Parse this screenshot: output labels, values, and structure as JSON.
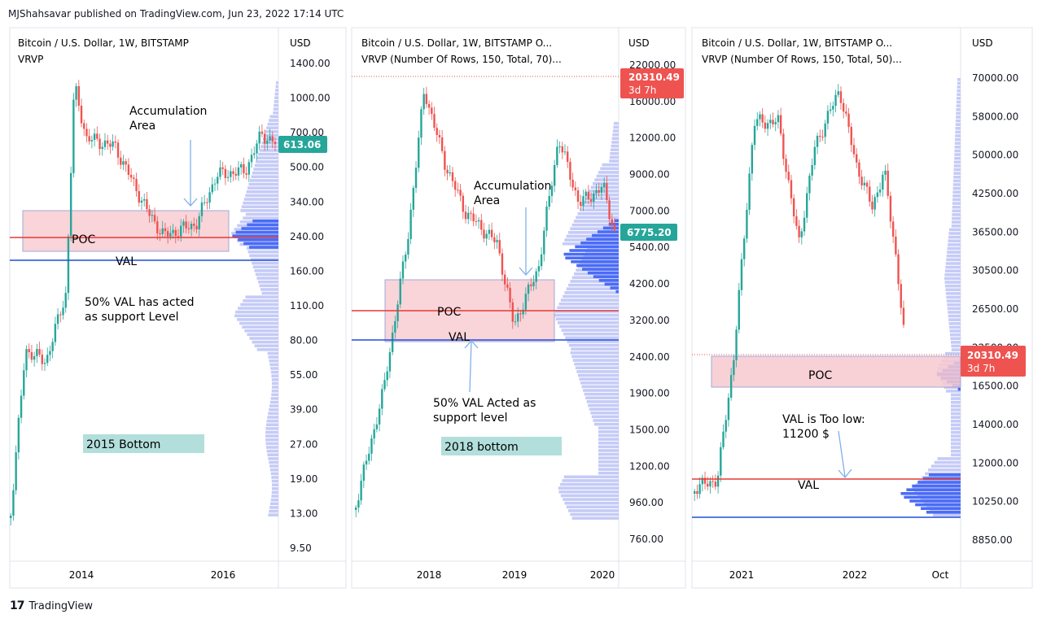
{
  "header": {
    "published": "MJShahsavar published on TradingView.com, Jun 23, 2022 17:14 UTC"
  },
  "brand": {
    "logo": "17",
    "name": "TradingView"
  },
  "colors": {
    "up": "#26a69a",
    "down": "#ef5350",
    "poc": "#e53935",
    "val": "#1e4fd8",
    "box_fill": "#f7c9cf",
    "box_stroke": "#9fa8da",
    "profile": "#c5cbf7",
    "profile_dark": "#4a6cf7",
    "price_tag_red": "#ef5350",
    "price_tag_green": "#26a69a"
  },
  "chart_data": [
    {
      "type": "candlestick",
      "title": "Bitcoin / U.S. Dollar, 1W, BITSTAMP",
      "subtitle": "VRVP",
      "currency": "USD",
      "y_scale": "log",
      "y_ticks": [
        "1400.00",
        "1000.00",
        "700.00",
        "500.00",
        "340.00",
        "240.00",
        "160.00",
        "110.00",
        "80.00",
        "55.00",
        "39.00",
        "27.00",
        "19.00",
        "13.00",
        "9.50"
      ],
      "x_ticks": [
        "2014",
        "2016"
      ],
      "last_price": "613.06",
      "series": [
        {
          "x": [
            "2013-05",
            "2013-09",
            "2013-11",
            "2014-01",
            "2014-05",
            "2014-08",
            "2015-01",
            "2015-06",
            "2015-09",
            "2015-12",
            "2016-04",
            "2016-06"
          ],
          "close": [
            120,
            130,
            1100,
            800,
            450,
            500,
            230,
            220,
            240,
            430,
            420,
            613
          ]
        }
      ],
      "annotations": [
        {
          "label": "Accumulation\nArea"
        },
        {
          "label": "POC",
          "value": 240
        },
        {
          "label": "VAL",
          "value": 185
        },
        {
          "label": "50% VAL has acted\nas support Level"
        },
        {
          "label": "2015 Bottom"
        }
      ]
    },
    {
      "type": "candlestick",
      "title": "Bitcoin / U.S. Dollar, 1W, BITSTAMP  O...",
      "subtitle": "VRVP (Number Of Rows, 150, Total, 70)...",
      "currency": "USD",
      "y_scale": "log",
      "y_ticks": [
        "22000.00",
        "16000.00",
        "12000.00",
        "9000.00",
        "7000.00",
        "5400.00",
        "4200.00",
        "3200.00",
        "2400.00",
        "1900.00",
        "1500.00",
        "1200.00",
        "960.00",
        "760.00"
      ],
      "x_ticks": [
        "2018",
        "2019",
        "2020"
      ],
      "last_price": "6775.20",
      "price_tag": {
        "price": "20310.49",
        "timer": "3d 7h"
      },
      "series": [
        {
          "x": [
            "2017-05",
            "2017-09",
            "2017-12",
            "2018-03",
            "2018-06",
            "2018-11",
            "2019-01",
            "2019-06",
            "2019-10",
            "2020-01",
            "2020-03"
          ],
          "close": [
            1400,
            4300,
            19000,
            9000,
            6500,
            4000,
            3500,
            12000,
            8500,
            9000,
            6775
          ]
        }
      ],
      "annotations": [
        {
          "label": "Accumulation\nArea"
        },
        {
          "label": "POC",
          "value": 3900
        },
        {
          "label": "VAL",
          "value": 3000
        },
        {
          "label": "50% VAL Acted as\nsupport level"
        },
        {
          "label": "2018 bottom"
        }
      ]
    },
    {
      "type": "candlestick",
      "title": "Bitcoin / U.S. Dollar, 1W, BITSTAMP  O...",
      "subtitle": "VRVP (Number Of Rows, 150, Total, 50)...",
      "currency": "USD",
      "y_scale": "log",
      "y_ticks": [
        "70000.00",
        "58000.00",
        "50000.00",
        "42500.00",
        "36500.00",
        "30500.00",
        "26500.00",
        "22500.00",
        "16500.00",
        "14000.00",
        "12000.00",
        "10250.00",
        "8850.00"
      ],
      "x_ticks": [
        "2021",
        "2022",
        "Oct"
      ],
      "price_tag": {
        "price": "20310.49",
        "timer": "3d 7h"
      },
      "series": [
        {
          "x": [
            "2020-09",
            "2020-12",
            "2021-04",
            "2021-07",
            "2021-11",
            "2022-01",
            "2022-04",
            "2022-06"
          ],
          "close": [
            10500,
            24000,
            58000,
            33000,
            66000,
            38000,
            45000,
            20310
          ]
        }
      ],
      "annotations": [
        {
          "label": "POC",
          "value": 20000
        },
        {
          "label": "VAL is Too low:\n11200 $"
        },
        {
          "label": "VAL",
          "value": 11200
        }
      ]
    }
  ]
}
